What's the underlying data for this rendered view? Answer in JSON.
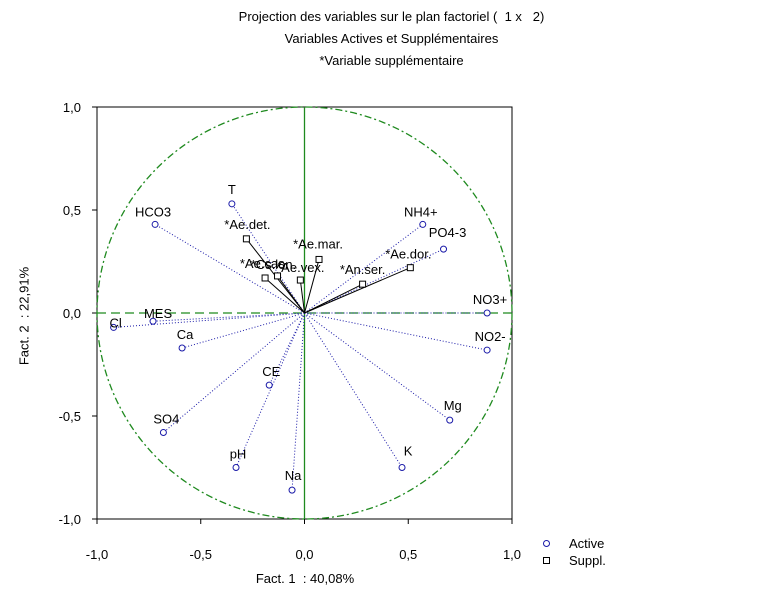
{
  "chart_data": {
    "type": "scatter",
    "title": "Projection des variables sur le plan factoriel (  1 x   2)",
    "subtitle": "Variables Actives et Supplémentaires",
    "note": "*Variable supplémentaire",
    "xlabel": "Fact. 1  : 40,08%",
    "ylabel": "Fact. 2  : 22,91%",
    "xlim": [
      -1.0,
      1.0
    ],
    "ylim": [
      -1.0,
      1.0
    ],
    "x_ticks": [
      "-1,0",
      "-0,5",
      "0,0",
      "0,5",
      "1,0"
    ],
    "y_ticks": [
      "1,0",
      "0,5",
      "0,0",
      "-0,5",
      "-1,0"
    ],
    "legend": {
      "position": "bottom-right",
      "entries": [
        "Active",
        "Suppl."
      ]
    },
    "colors": {
      "active": "#1a1aa8",
      "suppl": "#000000",
      "axes_guides": "#1f8a1f",
      "circle": "#1f8a1f"
    },
    "series": [
      {
        "name": "Active",
        "points": [
          {
            "label": "T",
            "x": -0.35,
            "y": 0.53
          },
          {
            "label": "HCO3",
            "x": -0.72,
            "y": 0.43
          },
          {
            "label": "NH4+",
            "x": 0.57,
            "y": 0.43
          },
          {
            "label": "PO4-3",
            "x": 0.67,
            "y": 0.31
          },
          {
            "label": "NO3+",
            "x": 0.88,
            "y": 0.0
          },
          {
            "label": "NO2-",
            "x": 0.88,
            "y": -0.18
          },
          {
            "label": "Cl",
            "x": -0.92,
            "y": -0.07
          },
          {
            "label": "MES",
            "x": -0.73,
            "y": -0.04
          },
          {
            "label": "Ca",
            "x": -0.59,
            "y": -0.17
          },
          {
            "label": "CE",
            "x": -0.17,
            "y": -0.35
          },
          {
            "label": "Mg",
            "x": 0.7,
            "y": -0.52
          },
          {
            "label": "SO4",
            "x": -0.68,
            "y": -0.58
          },
          {
            "label": "pH",
            "x": -0.33,
            "y": -0.75
          },
          {
            "label": "K",
            "x": 0.47,
            "y": -0.75
          },
          {
            "label": "Na",
            "x": -0.06,
            "y": -0.86
          }
        ]
      },
      {
        "name": "Suppl.",
        "points": [
          {
            "label": "*Ae.det.",
            "x": -0.28,
            "y": 0.36
          },
          {
            "label": "*Ae.mar.",
            "x": 0.07,
            "y": 0.26
          },
          {
            "label": "*Ae.cas.",
            "x": -0.19,
            "y": 0.17
          },
          {
            "label": "*Cs.lon.",
            "x": -0.13,
            "y": 0.18
          },
          {
            "label": "*Ae.vex.",
            "x": -0.02,
            "y": 0.16
          },
          {
            "label": "*Ae.dor.",
            "x": 0.51,
            "y": 0.22
          },
          {
            "label": "*An.ser.",
            "x": 0.28,
            "y": 0.14
          }
        ]
      }
    ]
  }
}
